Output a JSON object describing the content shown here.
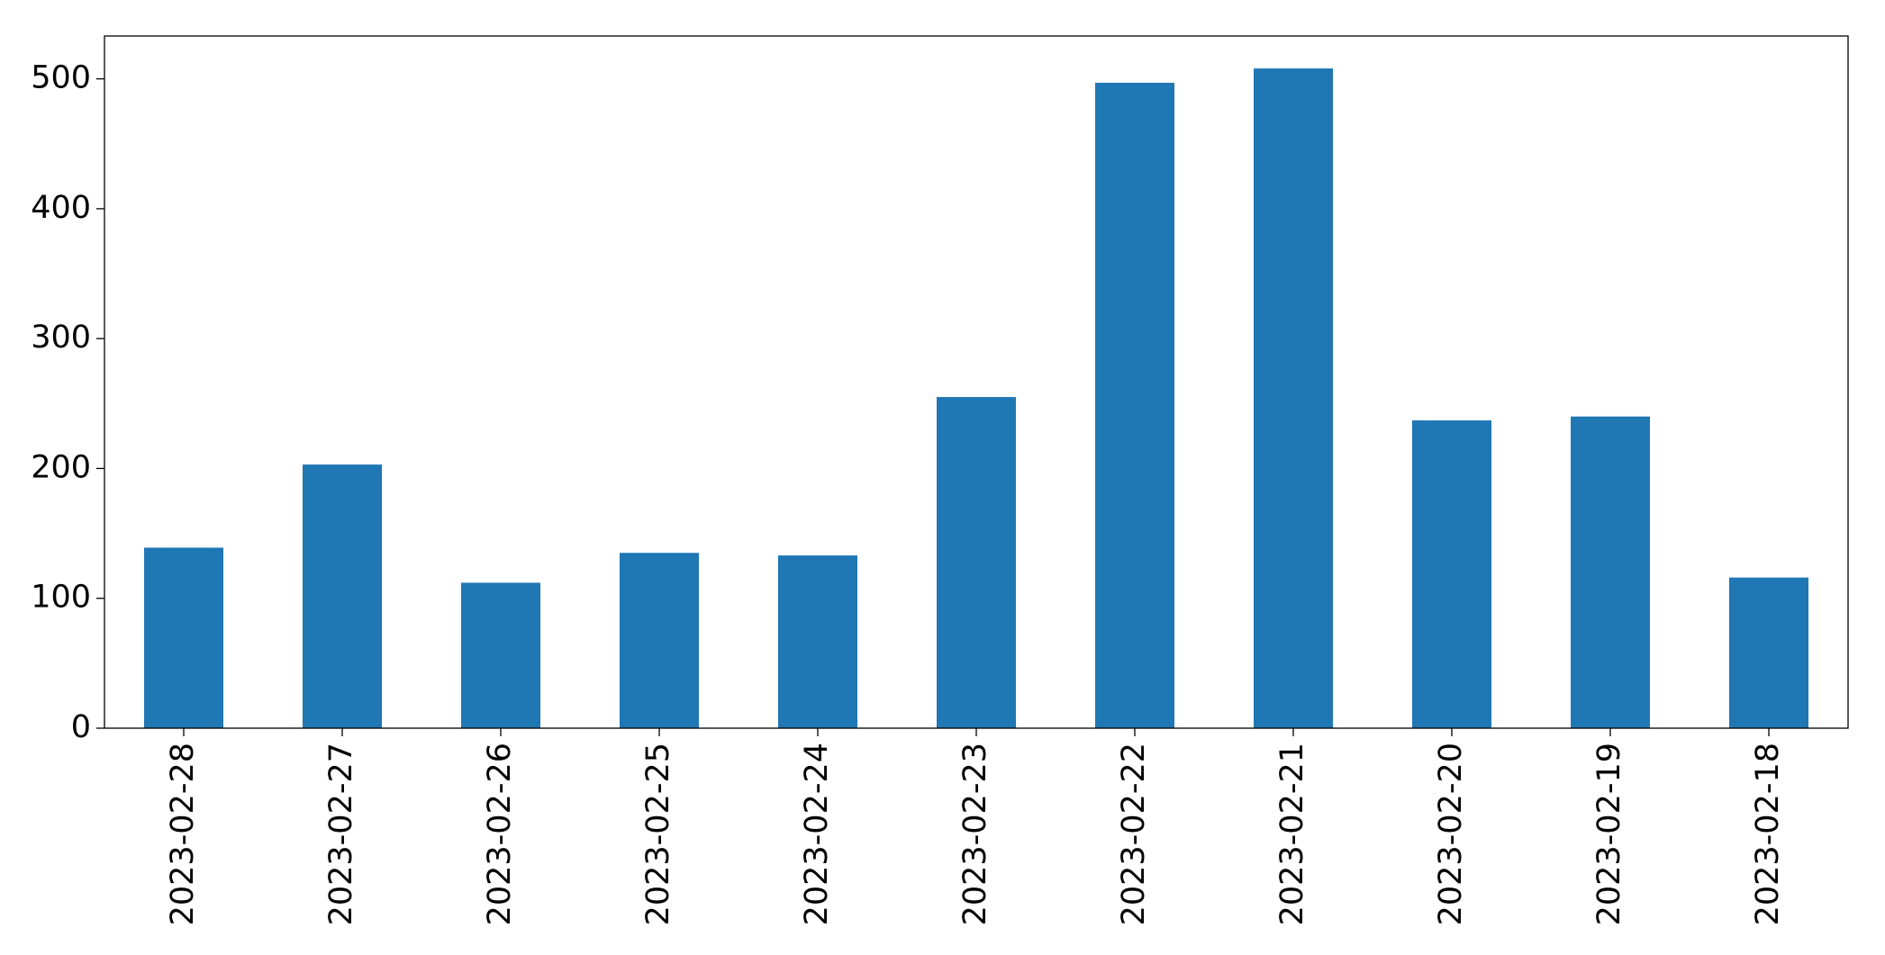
{
  "chart_data": {
    "type": "bar",
    "categories": [
      "2023-02-28",
      "2023-02-27",
      "2023-02-26",
      "2023-02-25",
      "2023-02-24",
      "2023-02-23",
      "2023-02-22",
      "2023-02-21",
      "2023-02-20",
      "2023-02-19",
      "2023-02-18"
    ],
    "values": [
      139,
      203,
      112,
      135,
      133,
      255,
      497,
      508,
      237,
      240,
      116
    ],
    "color": "#1f77b4",
    "ylim": [
      0,
      533
    ],
    "yticks": [
      0,
      100,
      200,
      300,
      400,
      500
    ],
    "grid": false
  }
}
